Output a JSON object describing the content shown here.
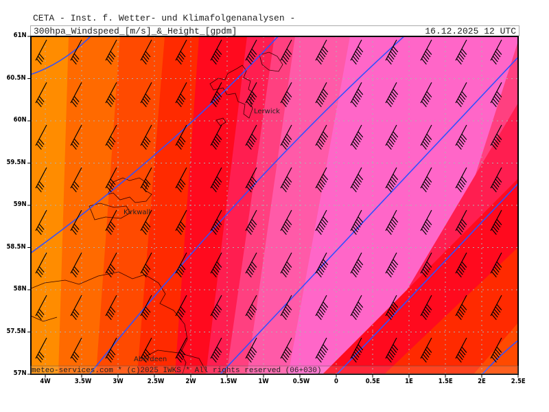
{
  "header": {
    "organization": "CETA - Inst. f. Wetter- und Klimafolgenanalysen -",
    "title": "300hpa_Windspeed_[m/s]_&_Height_[gpdm]",
    "datetime": "16.12.2025 12 UTC"
  },
  "footer": "meteo-services.com * (c)2025 IWKS * All rights reserved (06+030)",
  "map": {
    "lat_labels": [
      "61N",
      "60.5N",
      "60N",
      "59.5N",
      "59N",
      "58.5N",
      "58N",
      "57.5N",
      "57N"
    ],
    "lon_labels": [
      "4W",
      "3.5W",
      "3W",
      "2.5W",
      "2W",
      "1.5W",
      "1W",
      "0.5W",
      "0",
      "0.5E",
      "1E",
      "1.5E",
      "2E",
      "2.5E"
    ],
    "places": [
      "Lerwick",
      "Kirkwall",
      "Aberdeen"
    ],
    "colors": {
      "contour": "#3050ff",
      "coast": "#330000",
      "grid": "#b0b0b0",
      "bands": [
        "#ff8c00",
        "#ff6a00",
        "#ff4a00",
        "#ff2a00",
        "#ff0a1e",
        "#ff1e50",
        "#ff4080",
        "#ff5aa8",
        "#ff66c8"
      ]
    },
    "legend": "none"
  }
}
